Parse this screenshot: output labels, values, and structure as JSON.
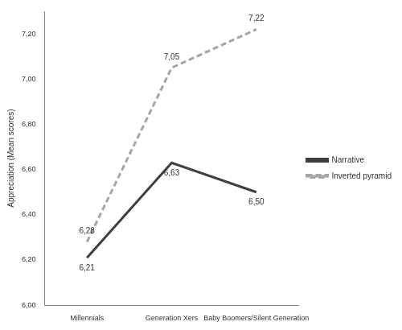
{
  "chart_data": {
    "type": "line",
    "y_label": "Appreciation (Mean scores)",
    "categories": [
      "Millennials",
      "Generation Xers",
      "Baby Boomers/Silent Generation"
    ],
    "series": [
      {
        "name": "Narrative",
        "color": "#404040",
        "line_style": "solid",
        "values": [
          6.21,
          6.63,
          6.5
        ],
        "value_labels": [
          "6,21",
          "6,63",
          "6,50"
        ]
      },
      {
        "name": "Inverted pyramid",
        "color": "#a6a6a6",
        "line_style": "dashed",
        "values": [
          6.28,
          7.05,
          7.22
        ],
        "value_labels": [
          "6,28",
          "7,05",
          "7,22"
        ]
      }
    ],
    "ylim": [
      6,
      7.3
    ],
    "yticks": [
      {
        "value": 6,
        "label": "6,00"
      },
      {
        "value": 6.2,
        "label": "6,20"
      },
      {
        "value": 6.4,
        "label": "6,40"
      },
      {
        "value": 6.6,
        "label": "6,60"
      },
      {
        "value": 6.8,
        "label": "6,80"
      },
      {
        "value": 7,
        "label": "7,00"
      },
      {
        "value": 7.2,
        "label": "7,20"
      }
    ],
    "grid": false,
    "legend": "right",
    "data_labels": true
  }
}
